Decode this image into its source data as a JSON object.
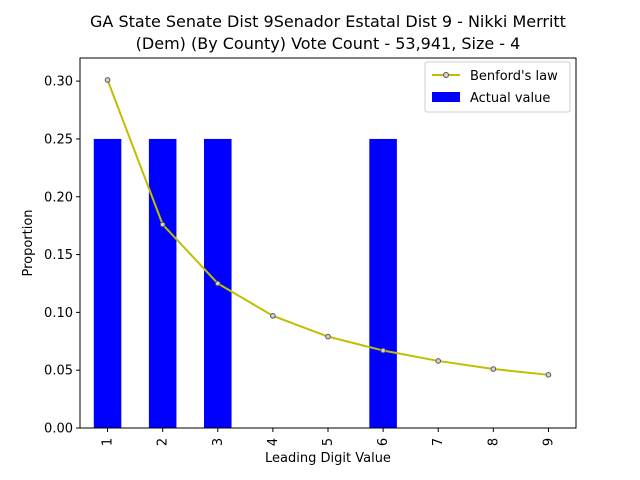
{
  "chart_data": {
    "type": "bar",
    "title_line1": "GA State Senate Dist 9Senador Estatal Dist 9 - Nikki Merritt",
    "title_line2": "(Dem) (By County) Vote Count - 53,941, Size - 4",
    "xlabel": "Leading Digit Value",
    "ylabel": "Proportion",
    "categories": [
      "1",
      "2",
      "3",
      "4",
      "5",
      "6",
      "7",
      "8",
      "9"
    ],
    "ylim": [
      0,
      0.32
    ],
    "y_ticks": [
      "0.00",
      "0.05",
      "0.10",
      "0.15",
      "0.20",
      "0.25",
      "0.30"
    ],
    "legend_position": "upper-right",
    "series": [
      {
        "name": "Benford's law",
        "type": "line",
        "color": "#bfbf00",
        "values": [
          0.301,
          0.176,
          0.125,
          0.097,
          0.079,
          0.067,
          0.058,
          0.051,
          0.046
        ]
      },
      {
        "name": "Actual value",
        "type": "bar",
        "color": "#0000ff",
        "values": [
          0.25,
          0.25,
          0.25,
          0,
          0,
          0.25,
          0,
          0,
          0
        ]
      }
    ]
  }
}
